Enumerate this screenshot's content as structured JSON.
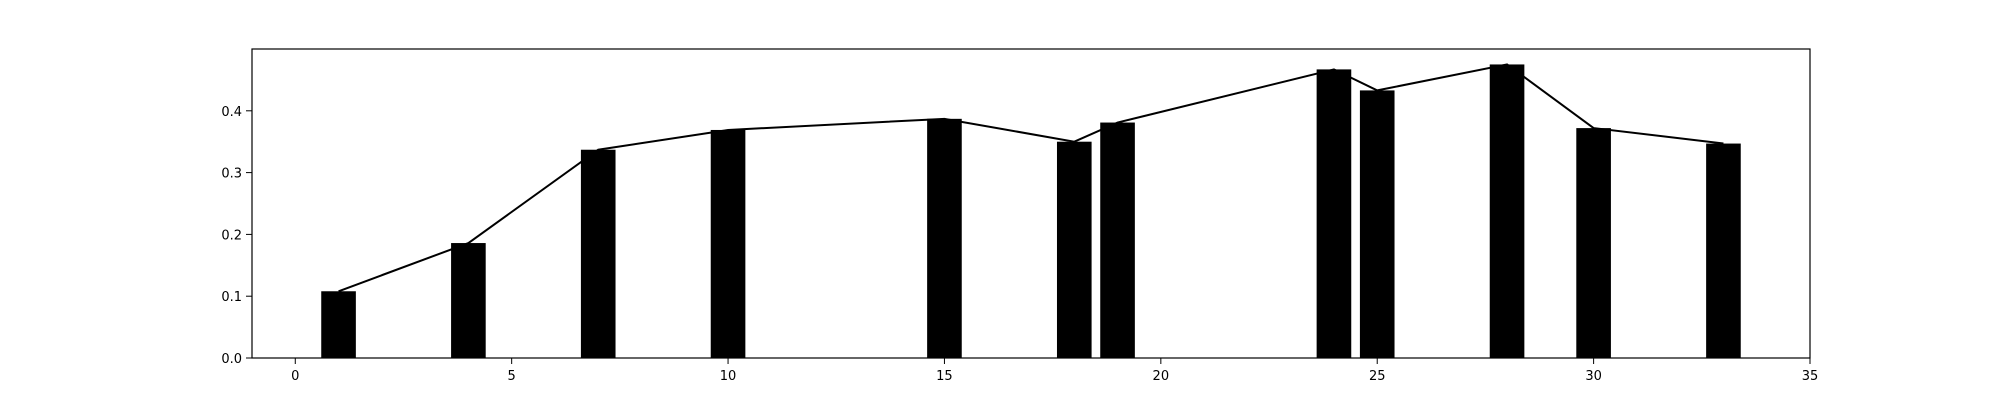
{
  "chart_data": {
    "type": "bar",
    "x": [
      1,
      4,
      7,
      10,
      15,
      18,
      19,
      24,
      25,
      28,
      30,
      33
    ],
    "values": [
      0.108,
      0.186,
      0.337,
      0.369,
      0.387,
      0.35,
      0.381,
      0.467,
      0.433,
      0.475,
      0.372,
      0.347
    ],
    "line_overlay": true,
    "xlim": [
      -1,
      35
    ],
    "ylim": [
      0,
      0.5
    ],
    "xticks": [
      0,
      5,
      10,
      15,
      20,
      25,
      30,
      35
    ],
    "yticks": [
      0.0,
      0.1,
      0.2,
      0.3,
      0.4
    ],
    "xtick_labels": [
      "0",
      "5",
      "10",
      "15",
      "20",
      "25",
      "30",
      "35"
    ],
    "ytick_labels": [
      "0.0",
      "0.1",
      "0.2",
      "0.3",
      "0.4"
    ],
    "title": "",
    "xlabel": "",
    "ylabel": "",
    "grid": false,
    "bar_color": "#000000",
    "line_color": "#000000"
  }
}
